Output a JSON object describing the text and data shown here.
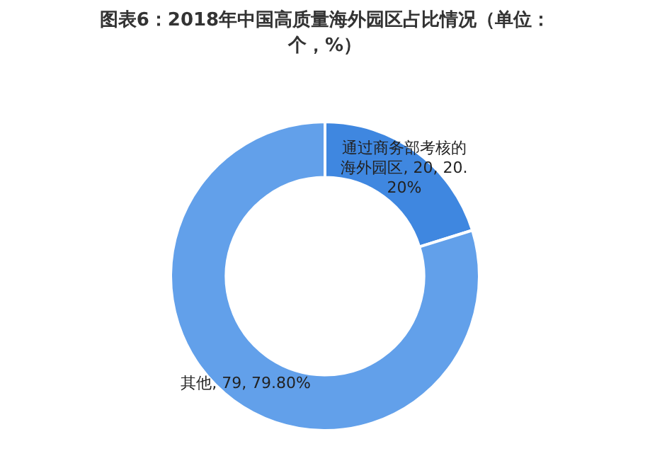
{
  "chart_data": {
    "type": "donut",
    "title": "图表6：2018年中国高质量海外园区占比情况（单位：个，%）",
    "categories": [
      "通过商务部考核的海外园区",
      "其他"
    ],
    "values": [
      20,
      79
    ],
    "value_labels": [
      "20, 20.20%",
      "79, 79.80%"
    ],
    "colors": [
      "#3f87e0",
      "#62a0ea"
    ],
    "legend": false
  }
}
